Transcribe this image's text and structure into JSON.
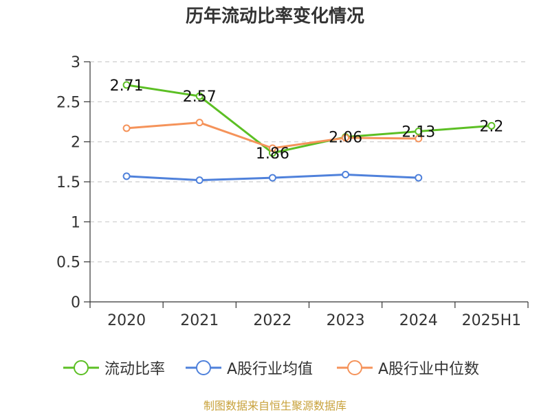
{
  "chart_data": {
    "type": "line",
    "title": "历年流动比率变化情况",
    "categories": [
      "2020",
      "2021",
      "2022",
      "2023",
      "2024",
      "2025H1"
    ],
    "yticks": [
      "0",
      "0.5",
      "1",
      "1.5",
      "2",
      "2.5",
      "3"
    ],
    "ylim": [
      0,
      3
    ],
    "grid": true,
    "legend_position": "bottom",
    "series": [
      {
        "name": "流动比率",
        "color": "#5cbf24",
        "values": [
          2.71,
          2.57,
          1.86,
          2.06,
          2.13,
          2.2
        ],
        "labels": [
          "2.71",
          "2.57",
          "1.86",
          "2.06",
          "2.13",
          "2.2"
        ]
      },
      {
        "name": "A股行业均值",
        "color": "#4f81db",
        "values": [
          1.57,
          1.52,
          1.55,
          1.59,
          1.55,
          null
        ]
      },
      {
        "name": "A股行业中位数",
        "color": "#f5935a",
        "values": [
          2.17,
          2.24,
          1.92,
          2.05,
          2.04,
          null
        ]
      }
    ]
  },
  "footer": {
    "source": "制图数据来自恒生聚源数据库"
  }
}
